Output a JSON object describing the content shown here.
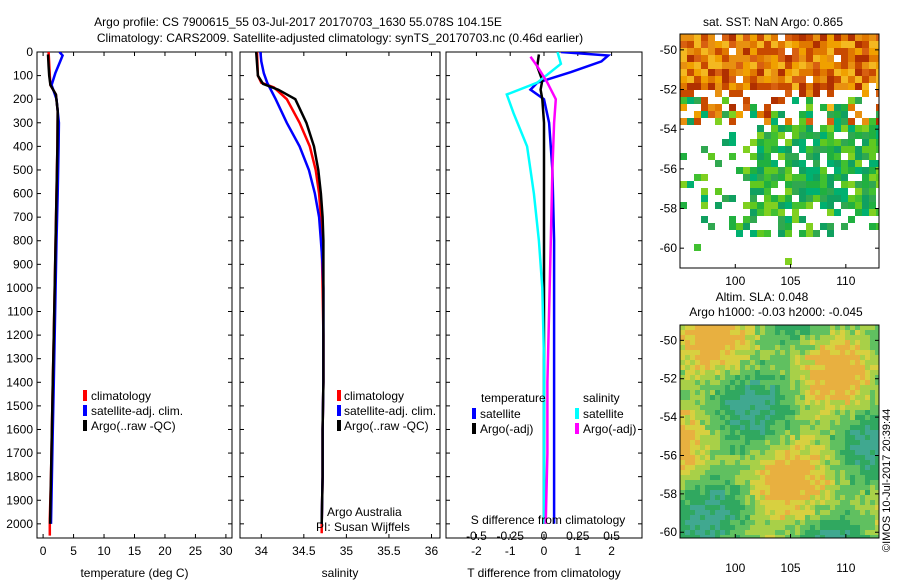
{
  "header": {
    "line1": "Argo profile: CS 7900615_55 03-Jul-2017 20170703_1630 55.078S 104.15E",
    "line2": "Climatology: CARS2009. Satellite-adjusted climatology: synTS_20170703.nc (0.46d earlier)"
  },
  "credit": "©IMOS 10-Jul-2017 20:39:44",
  "chart_data": [
    {
      "type": "line",
      "name": "temperature-panel",
      "xlabel": "temperature (deg C)",
      "xlim": [
        -1,
        31
      ],
      "xticks": [
        0,
        5,
        10,
        15,
        20,
        25,
        30
      ],
      "ylim": [
        2060,
        0
      ],
      "yticks": [
        0,
        100,
        200,
        300,
        400,
        500,
        600,
        700,
        800,
        900,
        1000,
        1100,
        1200,
        1300,
        1400,
        1500,
        1600,
        1700,
        1800,
        1900,
        2000
      ],
      "legend": [
        "climatology",
        "satellite-adj. clim.",
        "Argo(..raw -QC)"
      ],
      "legend_position": "lower-center",
      "colors": {
        "climatology": "#ff0000",
        "satellite": "#0000ff",
        "argo": "#000000"
      },
      "series": [
        {
          "key": "climatology",
          "color": "#ff0000",
          "points": [
            [
              0.9,
              0
            ],
            [
              1.0,
              50
            ],
            [
              1.1,
              100
            ],
            [
              1.2,
              140
            ],
            [
              2.1,
              180
            ],
            [
              2.4,
              250
            ],
            [
              2.35,
              400
            ],
            [
              2.2,
              600
            ],
            [
              2.05,
              800
            ],
            [
              1.9,
              1000
            ],
            [
              1.75,
              1200
            ],
            [
              1.6,
              1400
            ],
            [
              1.45,
              1600
            ],
            [
              1.3,
              1800
            ],
            [
              1.1,
              1980
            ],
            [
              1.1,
              2050
            ]
          ]
        },
        {
          "key": "satellite",
          "color": "#0000ff",
          "points": [
            [
              2.7,
              0
            ],
            [
              3.2,
              15
            ],
            [
              2.8,
              40
            ],
            [
              2.0,
              90
            ],
            [
              1.4,
              140
            ],
            [
              2.2,
              200
            ],
            [
              2.6,
              300
            ],
            [
              2.55,
              400
            ],
            [
              2.4,
              600
            ],
            [
              2.2,
              800
            ],
            [
              2.05,
              1000
            ],
            [
              1.9,
              1200
            ],
            [
              1.75,
              1400
            ],
            [
              1.6,
              1600
            ],
            [
              1.45,
              1800
            ],
            [
              1.3,
              2000
            ]
          ]
        },
        {
          "key": "argo",
          "color": "#000000",
          "points": [
            [
              0.8,
              10
            ],
            [
              0.9,
              60
            ],
            [
              1.0,
              100
            ],
            [
              1.2,
              140
            ],
            [
              2.1,
              180
            ],
            [
              2.4,
              250
            ],
            [
              2.35,
              400
            ],
            [
              2.2,
              600
            ],
            [
              2.05,
              800
            ],
            [
              1.9,
              1000
            ],
            [
              1.75,
              1200
            ],
            [
              1.6,
              1400
            ],
            [
              1.45,
              1600
            ],
            [
              1.3,
              1800
            ],
            [
              1.15,
              2000
            ]
          ]
        }
      ]
    },
    {
      "type": "line",
      "name": "salinity-panel",
      "xlabel": "salinity",
      "xlim": [
        33.75,
        36.1
      ],
      "xticks": [
        34,
        34.5,
        35,
        35.5,
        36
      ],
      "ylim": [
        2060,
        0
      ],
      "legend": [
        "climatology",
        "satellite-adj. clim.",
        "Argo(..raw -QC)"
      ],
      "legend_position": "lower-right",
      "annotations": [
        "Argo Australia",
        "PI: Susan Wijffels"
      ],
      "series": [
        {
          "key": "climatology",
          "color": "#ff0000",
          "points": [
            [
              33.95,
              0
            ],
            [
              33.96,
              100
            ],
            [
              34.0,
              130
            ],
            [
              34.15,
              150
            ],
            [
              34.3,
              200
            ],
            [
              34.45,
              300
            ],
            [
              34.57,
              400
            ],
            [
              34.64,
              500
            ],
            [
              34.68,
              600
            ],
            [
              34.7,
              700
            ],
            [
              34.71,
              800
            ],
            [
              34.72,
              1000
            ],
            [
              34.73,
              1200
            ],
            [
              34.73,
              1400
            ],
            [
              34.72,
              1600
            ],
            [
              34.72,
              1800
            ],
            [
              34.71,
              2000
            ],
            [
              34.71,
              2040
            ]
          ]
        },
        {
          "key": "satellite",
          "color": "#0000ff",
          "points": [
            [
              33.99,
              0
            ],
            [
              34.0,
              40
            ],
            [
              34.03,
              90
            ],
            [
              34.07,
              130
            ],
            [
              34.17,
              200
            ],
            [
              34.3,
              300
            ],
            [
              34.45,
              400
            ],
            [
              34.56,
              500
            ],
            [
              34.63,
              600
            ],
            [
              34.68,
              700
            ],
            [
              34.7,
              800
            ],
            [
              34.72,
              900
            ],
            [
              34.73,
              1000
            ],
            [
              34.73,
              1200
            ],
            [
              34.73,
              1400
            ],
            [
              34.72,
              1600
            ],
            [
              34.72,
              1800
            ],
            [
              34.71,
              2000
            ]
          ]
        },
        {
          "key": "argo",
          "color": "#000000",
          "points": [
            [
              33.94,
              0
            ],
            [
              33.96,
              100
            ],
            [
              34.02,
              135
            ],
            [
              34.2,
              160
            ],
            [
              34.4,
              200
            ],
            [
              34.53,
              300
            ],
            [
              34.62,
              400
            ],
            [
              34.67,
              500
            ],
            [
              34.7,
              600
            ],
            [
              34.72,
              700
            ],
            [
              34.73,
              800
            ],
            [
              34.73,
              1000
            ],
            [
              34.73,
              1200
            ],
            [
              34.73,
              1400
            ],
            [
              34.72,
              1600
            ],
            [
              34.72,
              1800
            ],
            [
              34.71,
              2000
            ]
          ]
        }
      ]
    },
    {
      "type": "line",
      "name": "difference-panel",
      "xlabel": "T difference from climatology",
      "xlim": [
        -2.9,
        2.9
      ],
      "xticks": [
        -2,
        -1,
        0,
        1,
        2
      ],
      "top_xlabel": "S difference from climatology",
      "top_xticks": [
        "-0.5",
        "-0.25",
        "0",
        "0.25",
        "0.5"
      ],
      "top_xtick_values": [
        -2,
        -1,
        0,
        1,
        2
      ],
      "ylim": [
        2060,
        0
      ],
      "legend": {
        "temperature_title": "temperature",
        "salinity_title": "salinity",
        "temperature": [
          "satellite",
          "Argo(-adj)"
        ],
        "salinity": [
          "satellite",
          "Argo(-adj)"
        ]
      },
      "legend_position": "lower-center",
      "series": [
        {
          "key": "temp_satellite",
          "color": "#0000ff",
          "points": [
            [
              0.5,
              0
            ],
            [
              1.9,
              15
            ],
            [
              1.7,
              40
            ],
            [
              0.8,
              85
            ],
            [
              -0.2,
              130
            ],
            [
              -0.4,
              160
            ],
            [
              0,
              200
            ],
            [
              0.15,
              300
            ],
            [
              0.25,
              500
            ],
            [
              0.3,
              800
            ],
            [
              0.3,
              1100
            ],
            [
              0.3,
              1400
            ],
            [
              0.3,
              1700
            ],
            [
              0.3,
              2000
            ]
          ]
        },
        {
          "key": "temp_argo",
          "color": "#000000",
          "points": [
            [
              -0.15,
              10
            ],
            [
              -0.2,
              60
            ],
            [
              -0.05,
              120
            ],
            [
              -0.1,
              160
            ],
            [
              -0.05,
              200
            ],
            [
              0,
              300
            ],
            [
              0,
              500
            ],
            [
              0,
              800
            ],
            [
              0,
              1100
            ],
            [
              0,
              1400
            ],
            [
              0,
              1700
            ],
            [
              0,
              2000
            ]
          ]
        },
        {
          "key": "sal_satellite",
          "color": "#00ffff",
          "points": [
            [
              0.4,
              0
            ],
            [
              0.5,
              50
            ],
            [
              -0.2,
              130
            ],
            [
              -1.1,
              180
            ],
            [
              -0.9,
              260
            ],
            [
              -0.5,
              400
            ],
            [
              -0.3,
              600
            ],
            [
              -0.15,
              800
            ],
            [
              -0.05,
              1000
            ],
            [
              0,
              1300
            ],
            [
              0,
              1600
            ],
            [
              0,
              2000
            ]
          ]
        },
        {
          "key": "sal_argo",
          "color": "#ff00ff",
          "points": [
            [
              -0.4,
              20
            ],
            [
              -0.2,
              60
            ],
            [
              0.1,
              130
            ],
            [
              0.35,
              200
            ],
            [
              0.3,
              300
            ],
            [
              0.25,
              500
            ],
            [
              0.2,
              800
            ],
            [
              0.15,
              1100
            ],
            [
              0.1,
              1400
            ],
            [
              0.1,
              1700
            ],
            [
              0.05,
              2000
            ]
          ]
        }
      ]
    },
    {
      "type": "heatmap",
      "name": "sst-map",
      "title": "sat. SST: NaN Argo: 0.865",
      "xticks": [
        100,
        105,
        110
      ],
      "yticks": [
        -50,
        -52,
        -54,
        -56,
        -58,
        -60
      ],
      "xlim": [
        95,
        113
      ],
      "ylim": [
        -61,
        -49.2
      ]
    },
    {
      "type": "heatmap",
      "name": "sla-map",
      "title_line1": "Altim. SLA: 0.048",
      "title_line2": "Argo h1000: -0.03 h2000: -0.045",
      "xticks": [
        100,
        105,
        110
      ],
      "yticks": [
        -50,
        -52,
        -54,
        -56,
        -58,
        -60
      ],
      "xlim": [
        95,
        113
      ],
      "ylim": [
        -60.3,
        -49.2
      ]
    }
  ]
}
